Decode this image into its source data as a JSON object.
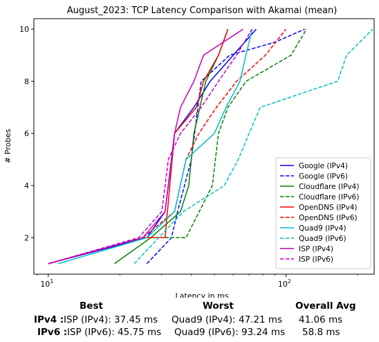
{
  "chart_data": {
    "type": "line",
    "title": "August_2023: TCP Latency Comparison with Akamai (mean)",
    "xlabel": "Latency in ms",
    "ylabel": "# Probes",
    "xscale": "log",
    "xlim": [
      8.7,
      235
    ],
    "ylim": [
      0.6,
      10.4
    ],
    "x_ticks": [
      {
        "value": 10,
        "label": "10^1",
        "base": "10",
        "exp": "1"
      },
      {
        "value": 100,
        "label": "10^2",
        "base": "10",
        "exp": "2"
      }
    ],
    "y_ticks": [
      2,
      4,
      6,
      8,
      10
    ],
    "grid": false,
    "legend_position": "lower right",
    "series": [
      {
        "name": "Google (IPv4)",
        "color": "#0000ff",
        "dash": "solid",
        "x": [
          10,
          26,
          31,
          34,
          41,
          48,
          60,
          75
        ],
        "y": [
          1,
          2,
          3,
          6,
          7,
          8,
          9,
          10
        ]
      },
      {
        "name": "Google (IPv6)",
        "color": "#0000ff",
        "dash": "dashed",
        "x": [
          26,
          33,
          35,
          40,
          44,
          58,
          90,
          120
        ],
        "y": [
          1,
          2,
          3,
          5,
          8,
          9,
          9.5,
          10
        ]
      },
      {
        "name": "Cloudflare (IPv4)",
        "color": "#008000",
        "dash": "solid",
        "x": [
          19,
          27,
          36,
          39,
          41,
          46,
          52,
          57
        ],
        "y": [
          1,
          2,
          3,
          4,
          6,
          8,
          9,
          10
        ]
      },
      {
        "name": "Cloudflare (IPv6)",
        "color": "#008000",
        "dash": "dashed",
        "x": [
          10,
          25,
          38,
          49,
          52,
          57,
          68,
          105,
          122
        ],
        "y": [
          1,
          2,
          2,
          4,
          6,
          7,
          8,
          9,
          10
        ]
      },
      {
        "name": "OpenDNS (IPv4)",
        "color": "#ff0000",
        "dash": "solid",
        "x": [
          10,
          25,
          31,
          34,
          42,
          45,
          52,
          57
        ],
        "y": [
          1,
          2,
          2,
          6,
          7,
          8,
          9,
          10
        ]
      },
      {
        "name": "OpenDNS (IPv6)",
        "color": "#ff0000",
        "dash": "dashed",
        "x": [
          10,
          25,
          34,
          38,
          43,
          51,
          62,
          82,
          100
        ],
        "y": [
          1,
          2,
          3,
          5,
          6,
          7,
          8,
          9,
          10
        ]
      },
      {
        "name": "Quad9 (IPv4)",
        "color": "#00bfbf",
        "dash": "solid",
        "x": [
          11,
          26,
          34,
          38,
          50,
          56,
          64,
          72
        ],
        "y": [
          1,
          2,
          3,
          5,
          6,
          7,
          8,
          10
        ]
      },
      {
        "name": "Quad9 (IPv6)",
        "color": "#00bfbf",
        "dash": "dashed",
        "x": [
          23,
          37,
          55,
          63,
          70,
          78,
          165,
          180,
          232
        ],
        "y": [
          1,
          3,
          4,
          5,
          6,
          7,
          8,
          9,
          10
        ]
      },
      {
        "name": "ISP (IPv4)",
        "color": "#bf00bf",
        "dash": "solid",
        "x": [
          10,
          25,
          31,
          32,
          33,
          34,
          36,
          41,
          45,
          66
        ],
        "y": [
          1,
          2,
          3,
          4,
          5,
          6,
          7,
          8,
          9,
          10
        ]
      },
      {
        "name": "ISP (IPv6)",
        "color": "#bf00bf",
        "dash": "dashed",
        "x": [
          10,
          24,
          30,
          31,
          32,
          36,
          44,
          52,
          62,
          72
        ],
        "y": [
          1,
          2,
          3,
          4,
          5,
          6,
          7,
          8,
          9,
          10
        ]
      }
    ]
  },
  "stats": {
    "headers": {
      "best": "Best",
      "worst": "Worst",
      "avg": "Overall Avg"
    },
    "rows": [
      {
        "label": "IPv4 :",
        "best": "ISP (IPv4): 37.45 ms",
        "worst": "Quad9 (IPv4): 47.21 ms",
        "avg": "41.06 ms"
      },
      {
        "label": "IPv6 :",
        "best": "ISP (IPv6): 45.75 ms",
        "worst": "Quad9 (IPv6): 93.24 ms",
        "avg": "58.8 ms"
      }
    ]
  }
}
